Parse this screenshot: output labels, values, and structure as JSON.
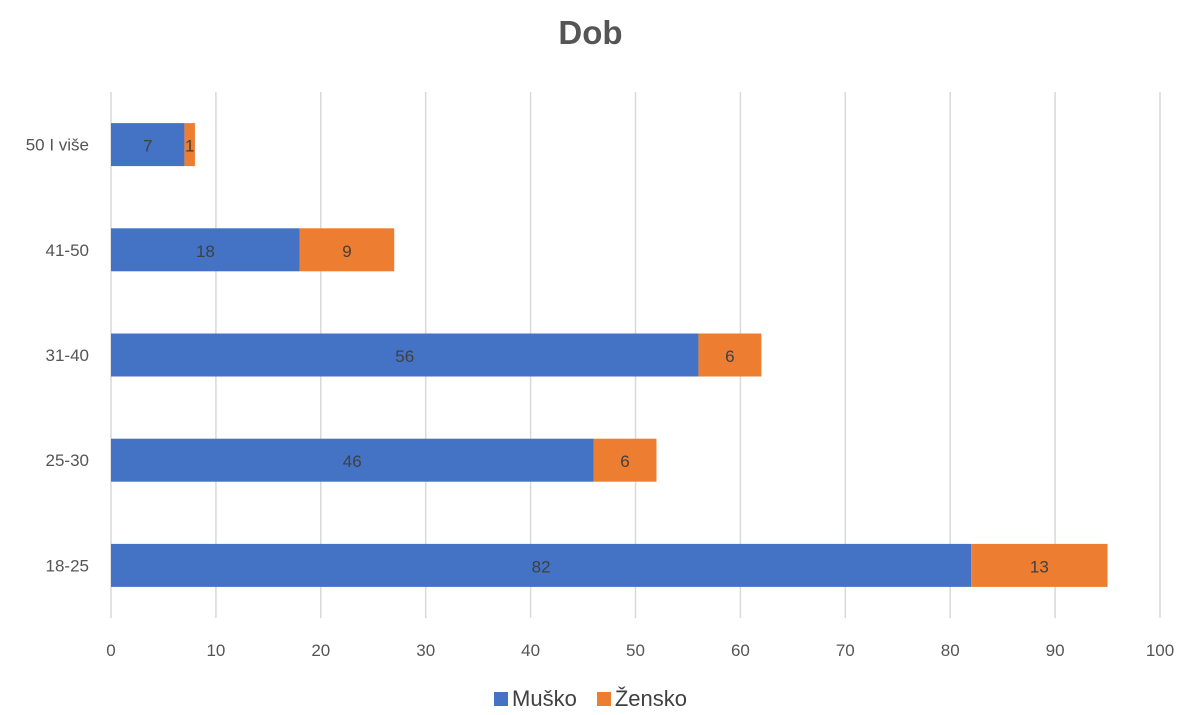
{
  "chart_data": {
    "type": "bar",
    "orientation": "horizontal",
    "stacked": true,
    "title": "Dob",
    "categories": [
      "50 I više",
      "41-50",
      "31-40",
      "25-30",
      "18-25"
    ],
    "series": [
      {
        "name": "Muško",
        "color": "#4472C4",
        "values": [
          7,
          18,
          56,
          46,
          82
        ]
      },
      {
        "name": "Žensko",
        "color": "#ED7D31",
        "values": [
          1,
          9,
          6,
          6,
          13
        ]
      }
    ],
    "xlim": [
      0,
      100
    ],
    "xticks": [
      0,
      10,
      20,
      30,
      40,
      50,
      60,
      70,
      80,
      90,
      100
    ],
    "grid": "vertical",
    "legend_position": "bottom"
  }
}
